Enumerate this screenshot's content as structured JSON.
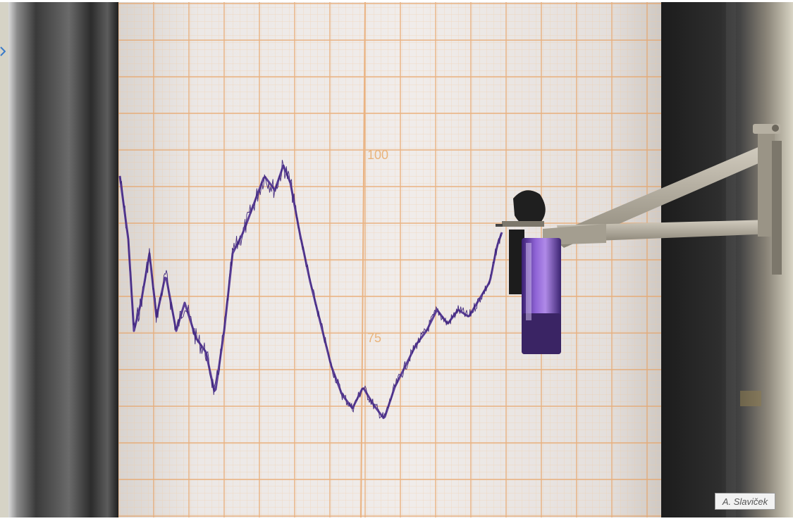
{
  "photo": {
    "chart_labels": [
      "100",
      "75"
    ],
    "credit": "A. Slaviček"
  },
  "colors": {
    "paper": "#ece8e6",
    "grid_minor": "#f2c79a",
    "grid_major": "#e8a060",
    "ink": "#4b2d8f",
    "pen_ink": "#7b4fc0",
    "metal": "#b7b0a2",
    "frame_dark": "#262626"
  }
}
